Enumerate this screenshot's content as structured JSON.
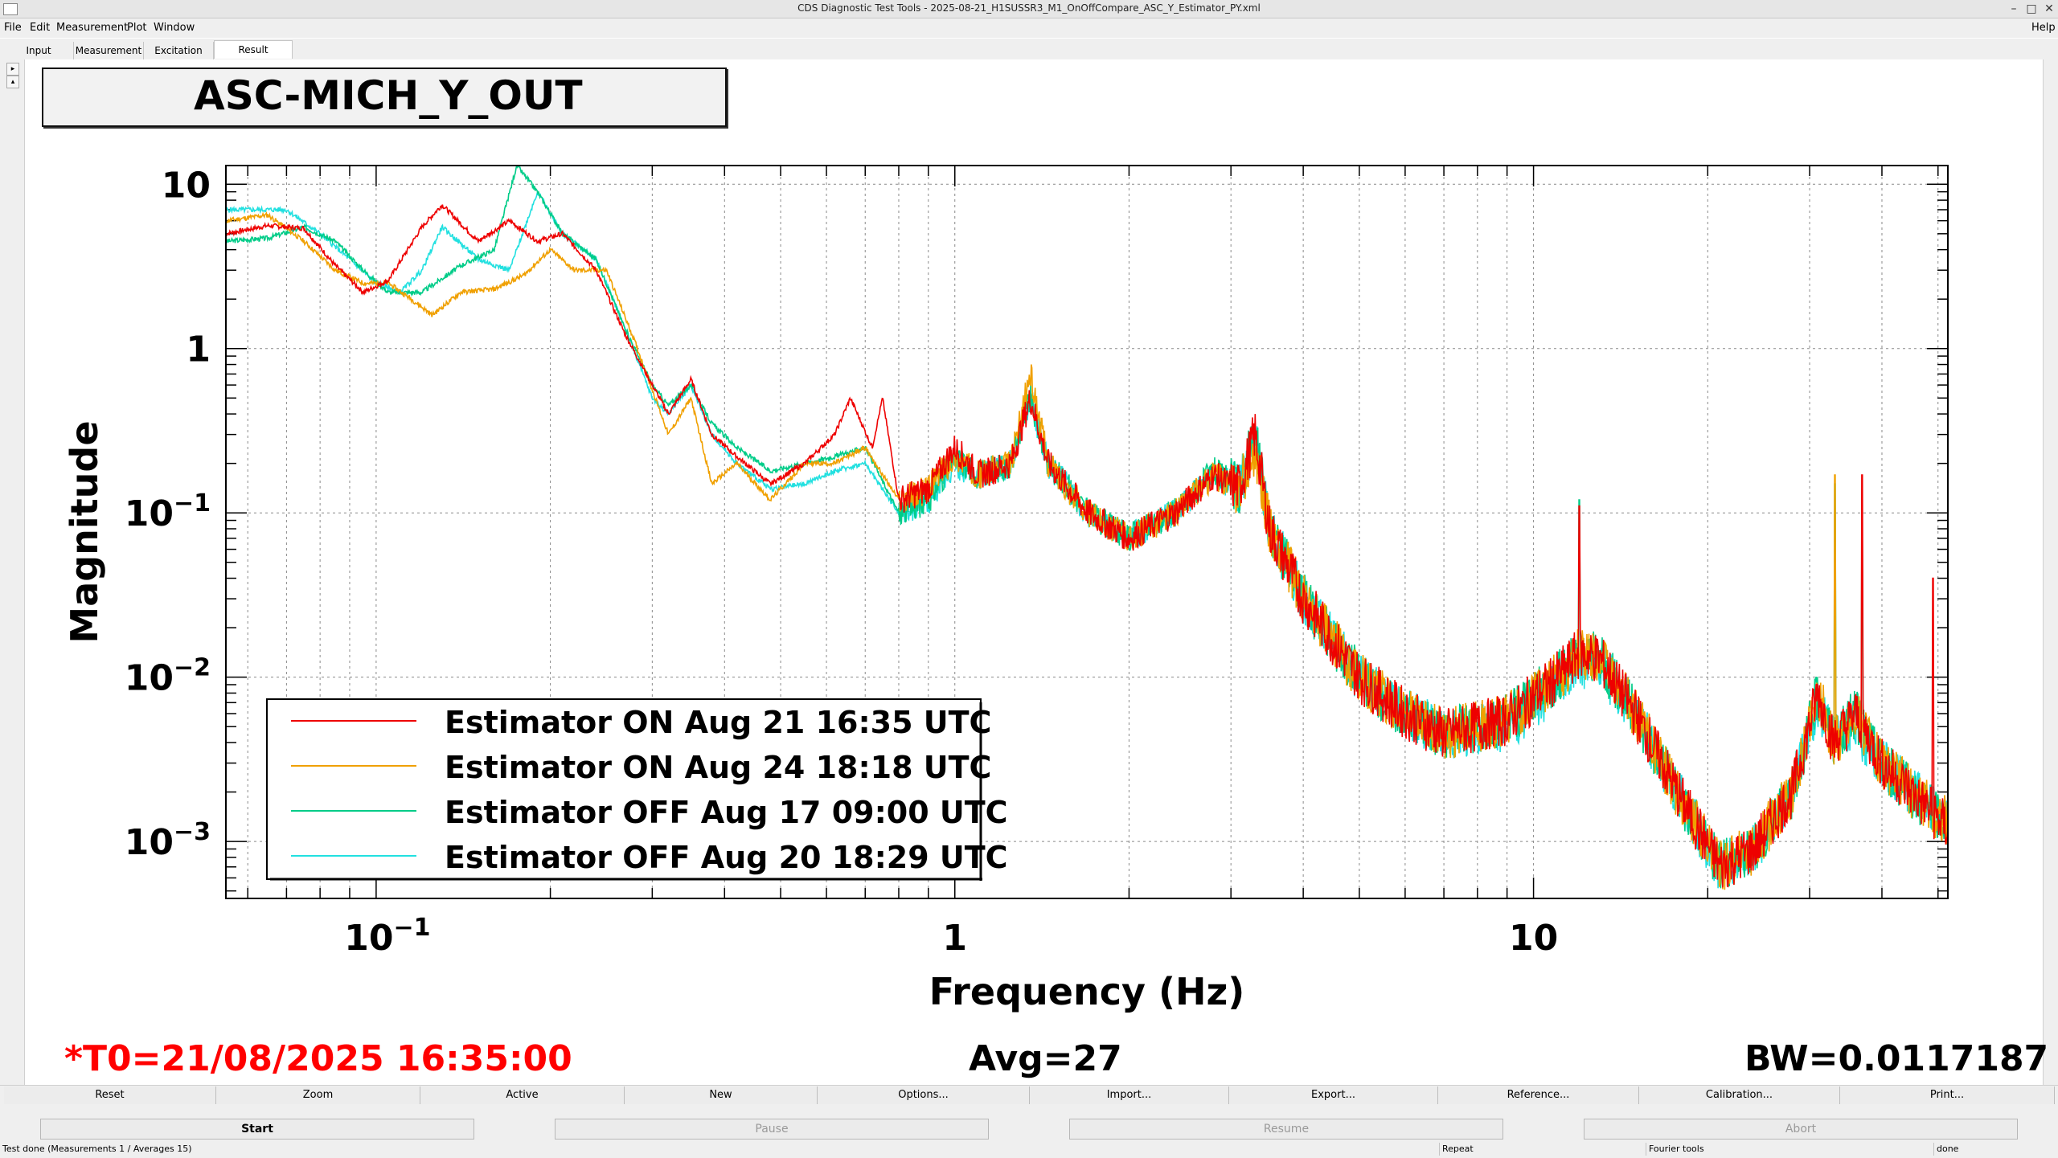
{
  "window": {
    "title": "CDS Diagnostic Test Tools - 2025-08-21_H1SUSSR3_M1_OnOffCompare_ASC_Y_Estimator_PY.xml",
    "controls": [
      "–",
      "□",
      "✕"
    ]
  },
  "menu": [
    "File",
    "Edit",
    "Measurement",
    "Plot",
    "Window"
  ],
  "menu_help": "Help",
  "tabs": [
    "Input",
    "Measurement",
    "Excitation",
    "Result"
  ],
  "plot_title": "ASC-MICH_Y_OUT",
  "chart_data": {
    "type": "line",
    "xscale": "log",
    "yscale": "log",
    "xlim": [
      0.055,
      52
    ],
    "ylim": [
      0.00045,
      13
    ],
    "xlabel": "Frequency (Hz)",
    "ylabel": "Magnitude",
    "x_ticks": [
      {
        "value": 0.1,
        "base": "10",
        "exp": "−1"
      },
      {
        "value": 1,
        "base": "1",
        "exp": ""
      },
      {
        "value": 10,
        "base": "10",
        "exp": ""
      }
    ],
    "y_ticks": [
      {
        "value": 10,
        "base": "10",
        "exp": ""
      },
      {
        "value": 1,
        "base": "1",
        "exp": ""
      },
      {
        "value": 0.1,
        "base": "10",
        "exp": "−1"
      },
      {
        "value": 0.01,
        "base": "10",
        "exp": "−2"
      },
      {
        "value": 0.001,
        "base": "10",
        "exp": "−3"
      }
    ],
    "grid": true,
    "legend_position": "bottom-left",
    "series": [
      {
        "name": "Estimator ON Aug 21 16:35 UTC",
        "color": "#ee0000",
        "noise": 0.2,
        "seed": 7,
        "spikes": [
          [
            12.0,
            0.11
          ],
          [
            37,
            0.17
          ],
          [
            49,
            0.04
          ]
        ],
        "points": [
          [
            0.055,
            5
          ],
          [
            0.065,
            5.6
          ],
          [
            0.075,
            5.4
          ],
          [
            0.085,
            3.2
          ],
          [
            0.095,
            2.2
          ],
          [
            0.105,
            2.6
          ],
          [
            0.12,
            5.5
          ],
          [
            0.13,
            7.5
          ],
          [
            0.15,
            4.5
          ],
          [
            0.17,
            6.0
          ],
          [
            0.19,
            4.5
          ],
          [
            0.21,
            5.0
          ],
          [
            0.24,
            3.0
          ],
          [
            0.27,
            1.2
          ],
          [
            0.3,
            0.6
          ],
          [
            0.32,
            0.4
          ],
          [
            0.35,
            0.65
          ],
          [
            0.38,
            0.3
          ],
          [
            0.42,
            0.22
          ],
          [
            0.48,
            0.15
          ],
          [
            0.55,
            0.2
          ],
          [
            0.62,
            0.3
          ],
          [
            0.66,
            0.5
          ],
          [
            0.72,
            0.25
          ],
          [
            0.75,
            0.5
          ],
          [
            0.8,
            0.12
          ],
          [
            0.9,
            0.14
          ],
          [
            1.0,
            0.25
          ],
          [
            1.1,
            0.17
          ],
          [
            1.25,
            0.2
          ],
          [
            1.35,
            0.5
          ],
          [
            1.45,
            0.2
          ],
          [
            1.7,
            0.1
          ],
          [
            2.0,
            0.07
          ],
          [
            2.4,
            0.1
          ],
          [
            2.8,
            0.17
          ],
          [
            3.1,
            0.14
          ],
          [
            3.3,
            0.3
          ],
          [
            3.5,
            0.08
          ],
          [
            4.0,
            0.03
          ],
          [
            5.0,
            0.01
          ],
          [
            6.0,
            0.006
          ],
          [
            7.0,
            0.0045
          ],
          [
            9.0,
            0.0055
          ],
          [
            11.0,
            0.01
          ],
          [
            12.0,
            0.014
          ],
          [
            13.0,
            0.013
          ],
          [
            15.0,
            0.006
          ],
          [
            18.0,
            0.0018
          ],
          [
            21.0,
            0.0007
          ],
          [
            24.0,
            0.0009
          ],
          [
            28.0,
            0.002
          ],
          [
            31.0,
            0.008
          ],
          [
            33.0,
            0.004
          ],
          [
            36.0,
            0.006
          ],
          [
            40.0,
            0.003
          ],
          [
            45.0,
            0.002
          ],
          [
            52,
            0.0012
          ]
        ]
      },
      {
        "name": "Estimator ON Aug 24 18:18 UTC",
        "color": "#f0a000",
        "noise": 0.2,
        "seed": 11,
        "spikes": [
          [
            33.2,
            0.17
          ]
        ],
        "points": [
          [
            0.055,
            6
          ],
          [
            0.065,
            6.5
          ],
          [
            0.075,
            4.5
          ],
          [
            0.085,
            3.0
          ],
          [
            0.095,
            2.5
          ],
          [
            0.105,
            2.5
          ],
          [
            0.115,
            2.0
          ],
          [
            0.125,
            1.6
          ],
          [
            0.14,
            2.2
          ],
          [
            0.16,
            2.3
          ],
          [
            0.18,
            2.8
          ],
          [
            0.2,
            4.0
          ],
          [
            0.22,
            3.0
          ],
          [
            0.25,
            3.0
          ],
          [
            0.28,
            1.1
          ],
          [
            0.32,
            0.3
          ],
          [
            0.35,
            0.5
          ],
          [
            0.38,
            0.15
          ],
          [
            0.42,
            0.2
          ],
          [
            0.48,
            0.12
          ],
          [
            0.55,
            0.2
          ],
          [
            0.62,
            0.2
          ],
          [
            0.7,
            0.25
          ],
          [
            0.8,
            0.12
          ],
          [
            0.9,
            0.14
          ],
          [
            1.0,
            0.22
          ],
          [
            1.1,
            0.17
          ],
          [
            1.25,
            0.2
          ],
          [
            1.35,
            0.7
          ],
          [
            1.45,
            0.2
          ],
          [
            1.7,
            0.1
          ],
          [
            2.0,
            0.07
          ],
          [
            2.4,
            0.1
          ],
          [
            2.8,
            0.17
          ],
          [
            3.1,
            0.14
          ],
          [
            3.3,
            0.25
          ],
          [
            3.5,
            0.08
          ],
          [
            4.0,
            0.03
          ],
          [
            5.0,
            0.01
          ],
          [
            6.0,
            0.006
          ],
          [
            7.0,
            0.0045
          ],
          [
            9.0,
            0.0055
          ],
          [
            11.0,
            0.01
          ],
          [
            12.0,
            0.014
          ],
          [
            13.0,
            0.013
          ],
          [
            15.0,
            0.006
          ],
          [
            18.0,
            0.0018
          ],
          [
            21.0,
            0.0007
          ],
          [
            24.0,
            0.0009
          ],
          [
            28.0,
            0.002
          ],
          [
            31.0,
            0.008
          ],
          [
            33.0,
            0.004
          ],
          [
            36.0,
            0.006
          ],
          [
            40.0,
            0.003
          ],
          [
            45.0,
            0.002
          ],
          [
            52,
            0.0013
          ]
        ]
      },
      {
        "name": "Estimator OFF Aug 17 09:00 UTC",
        "color": "#00cc88",
        "noise": 0.2,
        "seed": 3,
        "spikes": [
          [
            12.0,
            0.12
          ],
          [
            33.2,
            0.15
          ],
          [
            37,
            0.07
          ]
        ],
        "points": [
          [
            0.055,
            4.5
          ],
          [
            0.065,
            4.7
          ],
          [
            0.075,
            5.5
          ],
          [
            0.085,
            4.5
          ],
          [
            0.095,
            3.0
          ],
          [
            0.105,
            2.2
          ],
          [
            0.12,
            2.2
          ],
          [
            0.14,
            3.2
          ],
          [
            0.16,
            4.0
          ],
          [
            0.175,
            13
          ],
          [
            0.19,
            9.0
          ],
          [
            0.21,
            5.0
          ],
          [
            0.24,
            3.5
          ],
          [
            0.27,
            1.3
          ],
          [
            0.3,
            0.6
          ],
          [
            0.32,
            0.45
          ],
          [
            0.35,
            0.6
          ],
          [
            0.38,
            0.35
          ],
          [
            0.42,
            0.25
          ],
          [
            0.48,
            0.18
          ],
          [
            0.55,
            0.2
          ],
          [
            0.62,
            0.22
          ],
          [
            0.7,
            0.25
          ],
          [
            0.8,
            0.1
          ],
          [
            0.9,
            0.12
          ],
          [
            1.0,
            0.22
          ],
          [
            1.1,
            0.17
          ],
          [
            1.25,
            0.2
          ],
          [
            1.35,
            0.5
          ],
          [
            1.45,
            0.2
          ],
          [
            1.7,
            0.1
          ],
          [
            2.0,
            0.07
          ],
          [
            2.4,
            0.1
          ],
          [
            2.8,
            0.18
          ],
          [
            3.1,
            0.14
          ],
          [
            3.3,
            0.3
          ],
          [
            3.5,
            0.08
          ],
          [
            4.0,
            0.03
          ],
          [
            5.0,
            0.01
          ],
          [
            6.0,
            0.006
          ],
          [
            7.0,
            0.0045
          ],
          [
            9.0,
            0.0055
          ],
          [
            11.0,
            0.01
          ],
          [
            12.0,
            0.014
          ],
          [
            13.0,
            0.013
          ],
          [
            15.0,
            0.006
          ],
          [
            18.0,
            0.0018
          ],
          [
            21.0,
            0.0007
          ],
          [
            24.0,
            0.0009
          ],
          [
            28.0,
            0.002
          ],
          [
            31.0,
            0.008
          ],
          [
            33.0,
            0.004
          ],
          [
            36.0,
            0.006
          ],
          [
            40.0,
            0.003
          ],
          [
            45.0,
            0.002
          ],
          [
            52,
            0.0013
          ]
        ]
      },
      {
        "name": "Estimator OFF Aug 20 18:29 UTC",
        "color": "#22e0e0",
        "noise": 0.2,
        "seed": 5,
        "spikes": [],
        "points": [
          [
            0.055,
            7
          ],
          [
            0.07,
            7
          ],
          [
            0.08,
            5.0
          ],
          [
            0.09,
            3.5
          ],
          [
            0.1,
            2.5
          ],
          [
            0.11,
            2.2
          ],
          [
            0.12,
            3.0
          ],
          [
            0.13,
            5.5
          ],
          [
            0.15,
            3.5
          ],
          [
            0.17,
            3.0
          ],
          [
            0.19,
            9.0
          ],
          [
            0.21,
            5.0
          ],
          [
            0.24,
            3.5
          ],
          [
            0.27,
            1.3
          ],
          [
            0.3,
            0.5
          ],
          [
            0.32,
            0.4
          ],
          [
            0.35,
            0.6
          ],
          [
            0.38,
            0.3
          ],
          [
            0.42,
            0.2
          ],
          [
            0.48,
            0.14
          ],
          [
            0.55,
            0.15
          ],
          [
            0.62,
            0.18
          ],
          [
            0.7,
            0.2
          ],
          [
            0.8,
            0.1
          ],
          [
            0.9,
            0.12
          ],
          [
            1.0,
            0.2
          ],
          [
            1.1,
            0.17
          ],
          [
            1.25,
            0.2
          ],
          [
            1.35,
            0.5
          ],
          [
            1.45,
            0.2
          ],
          [
            1.7,
            0.1
          ],
          [
            2.0,
            0.07
          ],
          [
            2.4,
            0.1
          ],
          [
            2.8,
            0.17
          ],
          [
            3.1,
            0.14
          ],
          [
            3.3,
            0.3
          ],
          [
            3.5,
            0.08
          ],
          [
            4.0,
            0.03
          ],
          [
            5.0,
            0.01
          ],
          [
            6.0,
            0.006
          ],
          [
            7.0,
            0.0045
          ],
          [
            9.0,
            0.005
          ],
          [
            11.0,
            0.009
          ],
          [
            12.0,
            0.012
          ],
          [
            13.0,
            0.012
          ],
          [
            15.0,
            0.006
          ],
          [
            18.0,
            0.0018
          ],
          [
            21.0,
            0.0007
          ],
          [
            24.0,
            0.0009
          ],
          [
            28.0,
            0.002
          ],
          [
            31.0,
            0.007
          ],
          [
            33.0,
            0.004
          ],
          [
            36.0,
            0.005
          ],
          [
            40.0,
            0.003
          ],
          [
            45.0,
            0.002
          ],
          [
            52,
            0.0013
          ]
        ]
      }
    ]
  },
  "info": {
    "t0": "*T0=21/08/2025 16:35:00",
    "avg": "Avg=27",
    "bw": "BW=0.0117187",
    "t0_color": "#ff0000"
  },
  "buttons_row1": [
    "Reset",
    "Zoom",
    "Active",
    "New",
    "Options...",
    "Import...",
    "Export...",
    "Reference...",
    "Calibration...",
    "Print..."
  ],
  "buttons_row2": [
    "Start",
    "Pause",
    "Resume",
    "Abort"
  ],
  "status": {
    "message": "Test done (Measurements 1 / Averages 15)",
    "repeat": "Repeat",
    "tools": "Fourier tools",
    "state": "done"
  }
}
